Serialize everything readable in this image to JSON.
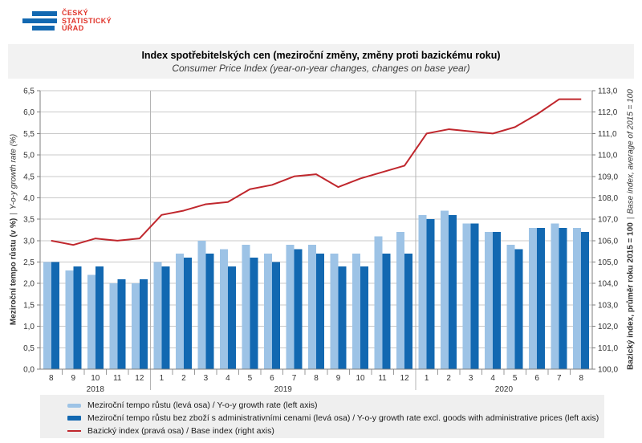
{
  "logo": {
    "lines": [
      "ČESKÝ",
      "STATISTICKÝ",
      "ÚŘAD"
    ],
    "bar_color": "#1268B1",
    "text_color": "#E0332A"
  },
  "header": {
    "title": "Index spotřebitelských cen (meziroční změny, změny proti bazickému roku)",
    "subtitle": "Consumer Price Index (year-on-year changes, changes on base year)"
  },
  "axes": {
    "left": {
      "title_cs": "Meziroční tempo růstu (v %)",
      "sep": "|",
      "title_en": "Y-o-y growth rate (%)"
    },
    "right": {
      "title_cs": "Bazický index, průměr roku 2015 = 100",
      "sep": "|",
      "title_en": "Base index, average of 2015 = 100"
    }
  },
  "colors": {
    "light_bar": "#9DC3E6",
    "dark_bar": "#1268B1",
    "line": "#C0272D",
    "grid": "#C9C9C9",
    "axis": "#7F7F7F",
    "separator": "#B4B4B4",
    "tick_text": "#333333",
    "band_bg": "#F2F2F2",
    "legend_bg": "#EFEFEF"
  },
  "chart_data": {
    "type": "bar",
    "categories": [
      "8",
      "9",
      "10",
      "11",
      "12",
      "1",
      "2",
      "3",
      "4",
      "5",
      "6",
      "7",
      "8",
      "9",
      "10",
      "11",
      "12",
      "1",
      "2",
      "3",
      "4",
      "5",
      "6",
      "7",
      "8"
    ],
    "category_groups": [
      {
        "label": "2018",
        "count": 5
      },
      {
        "label": "2019",
        "count": 12
      },
      {
        "label": "2020",
        "count": 8
      }
    ],
    "left_ylim": [
      0,
      6.5
    ],
    "left_step": 0.5,
    "right_ylim": [
      100,
      113
    ],
    "right_step": 1.0,
    "grid": true,
    "legend_position": "bottom",
    "series": [
      {
        "name": "Meziroční tempo růstu (levá osa) / Y-o-y growth rate (left axis)",
        "type": "bar",
        "axis": "left",
        "color": "#9DC3E6",
        "values": [
          2.5,
          2.3,
          2.2,
          2.0,
          2.0,
          2.5,
          2.7,
          3.0,
          2.8,
          2.9,
          2.7,
          2.9,
          2.9,
          2.7,
          2.7,
          3.1,
          3.2,
          3.6,
          3.7,
          3.4,
          3.2,
          2.9,
          3.3,
          3.4,
          3.3
        ]
      },
      {
        "name": "Meziroční tempo růstu bez zboží s administrativními cenami (levá osa) / Y-o-y growth rate excl. goods with administrative prices (left axis)",
        "type": "bar",
        "axis": "left",
        "color": "#1268B1",
        "values": [
          2.5,
          2.4,
          2.4,
          2.1,
          2.1,
          2.4,
          2.6,
          2.7,
          2.4,
          2.6,
          2.5,
          2.8,
          2.7,
          2.4,
          2.4,
          2.7,
          2.7,
          3.5,
          3.6,
          3.4,
          3.2,
          2.8,
          3.3,
          3.3,
          3.2
        ]
      },
      {
        "name": "Bazický index (pravá osa) / Base index (right axis)",
        "type": "line",
        "axis": "right",
        "color": "#C0272D",
        "values": [
          106.0,
          105.8,
          106.1,
          106.0,
          106.1,
          107.2,
          107.4,
          107.7,
          107.8,
          108.4,
          108.6,
          109.0,
          109.1,
          108.5,
          108.9,
          109.2,
          109.5,
          111.0,
          111.2,
          111.1,
          111.0,
          111.3,
          111.9,
          112.6,
          112.6
        ]
      }
    ]
  }
}
